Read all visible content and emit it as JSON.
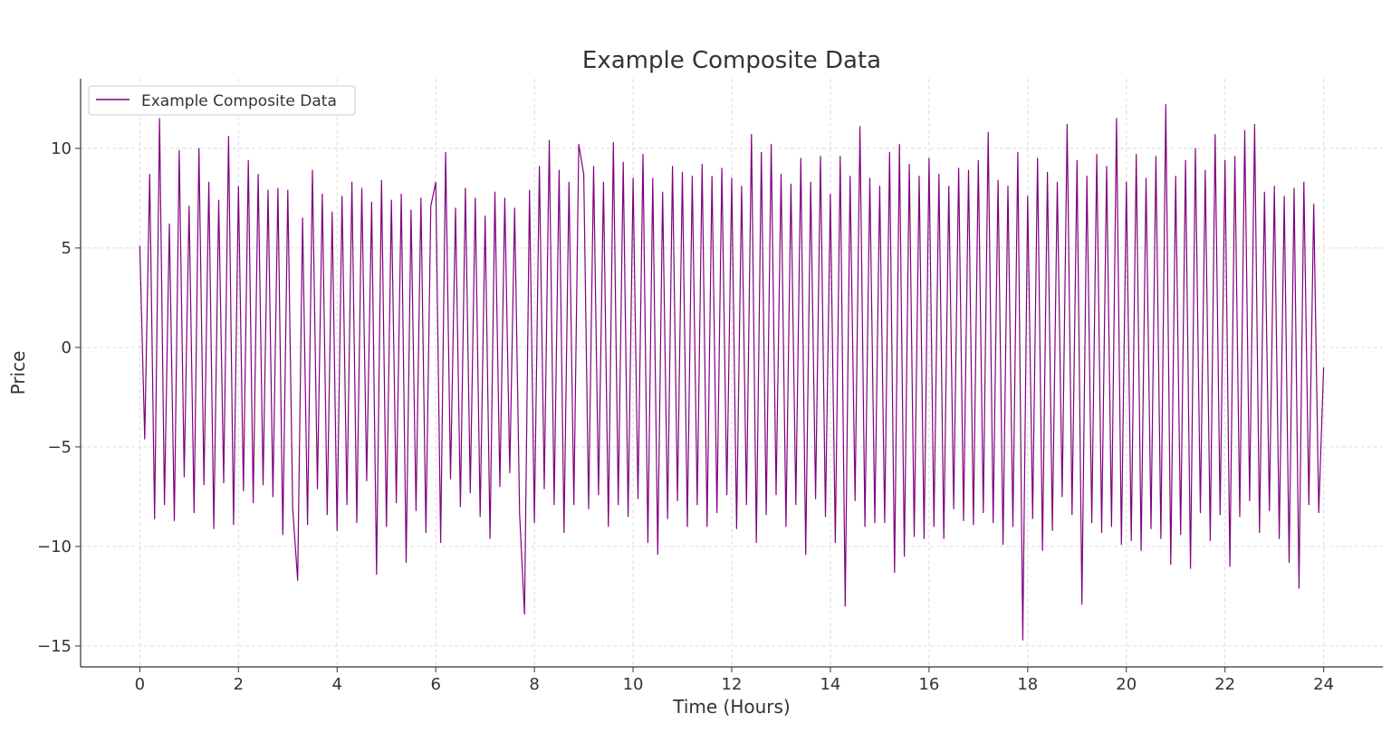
{
  "chart_data": {
    "type": "line",
    "title": "Example Composite Data",
    "xlabel": "Time (Hours)",
    "ylabel": "Price",
    "xlim": [
      -1.2,
      25.2
    ],
    "ylim": [
      -16.05,
      13.5
    ],
    "xticks": [
      0,
      2,
      4,
      6,
      8,
      10,
      12,
      14,
      16,
      18,
      20,
      22,
      24
    ],
    "yticks": [
      -15,
      -10,
      -5,
      0,
      5,
      10
    ],
    "grid": true,
    "legend_position": "top-left",
    "color": "#800080",
    "series": [
      {
        "name": "Example Composite Data",
        "x_start": 0,
        "x_end": 24,
        "values": [
          5.1,
          -4.6,
          8.7,
          -8.6,
          11.5,
          -7.9,
          6.2,
          -8.7,
          9.9,
          -6.5,
          7.1,
          -8.3,
          10.0,
          -6.9,
          8.3,
          -9.1,
          7.4,
          -6.8,
          10.6,
          -8.9,
          8.1,
          -7.2,
          9.4,
          -7.8,
          8.7,
          -6.9,
          7.9,
          -7.5,
          8.0,
          -9.4,
          7.9,
          -8.1,
          -11.7,
          6.5,
          -8.9,
          8.9,
          -7.1,
          7.7,
          -8.4,
          6.8,
          -9.2,
          7.6,
          -7.9,
          8.3,
          -8.8,
          8.0,
          -6.7,
          7.3,
          -11.4,
          8.4,
          -9.0,
          7.4,
          -7.8,
          7.7,
          -10.8,
          6.9,
          -8.2,
          7.5,
          -9.3,
          7.1,
          8.3,
          -9.8,
          9.8,
          -6.6,
          7.0,
          -8.0,
          8.0,
          -7.3,
          7.5,
          -8.5,
          6.6,
          -9.6,
          7.8,
          -7.0,
          7.5,
          -6.3,
          7.0,
          -8.4,
          -13.4,
          7.9,
          -8.8,
          9.1,
          -7.1,
          10.4,
          -7.9,
          8.9,
          -9.3,
          8.3,
          -7.9,
          10.2,
          8.7,
          -8.1,
          9.1,
          -7.4,
          8.3,
          -9.0,
          10.3,
          -7.9,
          9.3,
          -8.5,
          8.5,
          -7.6,
          9.7,
          -9.8,
          8.5,
          -10.4,
          7.8,
          -8.6,
          9.1,
          -7.7,
          8.8,
          -9.0,
          8.6,
          -7.9,
          9.2,
          -9.0,
          8.6,
          -8.3,
          9.0,
          -7.4,
          8.5,
          -9.1,
          8.1,
          -7.9,
          10.7,
          -9.8,
          9.8,
          -8.4,
          10.2,
          -7.4,
          8.7,
          -9.0,
          8.2,
          -7.9,
          9.5,
          -10.4,
          8.3,
          -7.6,
          9.6,
          -8.5,
          7.7,
          -9.8,
          9.6,
          -13.0,
          8.6,
          -7.7,
          11.1,
          -9.0,
          8.5,
          -8.8,
          8.1,
          -8.8,
          9.8,
          -11.3,
          10.2,
          -10.5,
          9.2,
          -9.5,
          8.6,
          -9.6,
          9.5,
          -9.0,
          8.7,
          -9.6,
          8.1,
          -8.1,
          9.0,
          -8.7,
          8.9,
          -8.9,
          9.4,
          -8.3,
          10.8,
          -8.8,
          8.4,
          -9.9,
          8.1,
          -9.0,
          9.8,
          -14.7,
          7.6,
          -8.6,
          9.5,
          -10.2,
          8.8,
          -9.2,
          8.3,
          -7.5,
          11.2,
          -8.4,
          9.4,
          -12.9,
          8.6,
          -8.8,
          9.7,
          -9.3,
          9.1,
          -9.0,
          11.5,
          -9.9,
          8.3,
          -9.7,
          9.7,
          -10.2,
          8.5,
          -9.1,
          9.6,
          -9.6,
          12.2,
          -10.9,
          8.6,
          -9.4,
          9.4,
          -11.1,
          10.0,
          -8.3,
          8.9,
          -9.7,
          10.7,
          -8.4,
          9.4,
          -11.0,
          9.6,
          -8.5,
          10.9,
          -7.7,
          11.2,
          -9.3,
          7.8,
          -8.2,
          8.1,
          -9.6,
          7.6,
          -10.8,
          8.0,
          -12.1,
          8.3,
          -7.9,
          7.2,
          -8.3,
          -1.0
        ]
      }
    ]
  }
}
